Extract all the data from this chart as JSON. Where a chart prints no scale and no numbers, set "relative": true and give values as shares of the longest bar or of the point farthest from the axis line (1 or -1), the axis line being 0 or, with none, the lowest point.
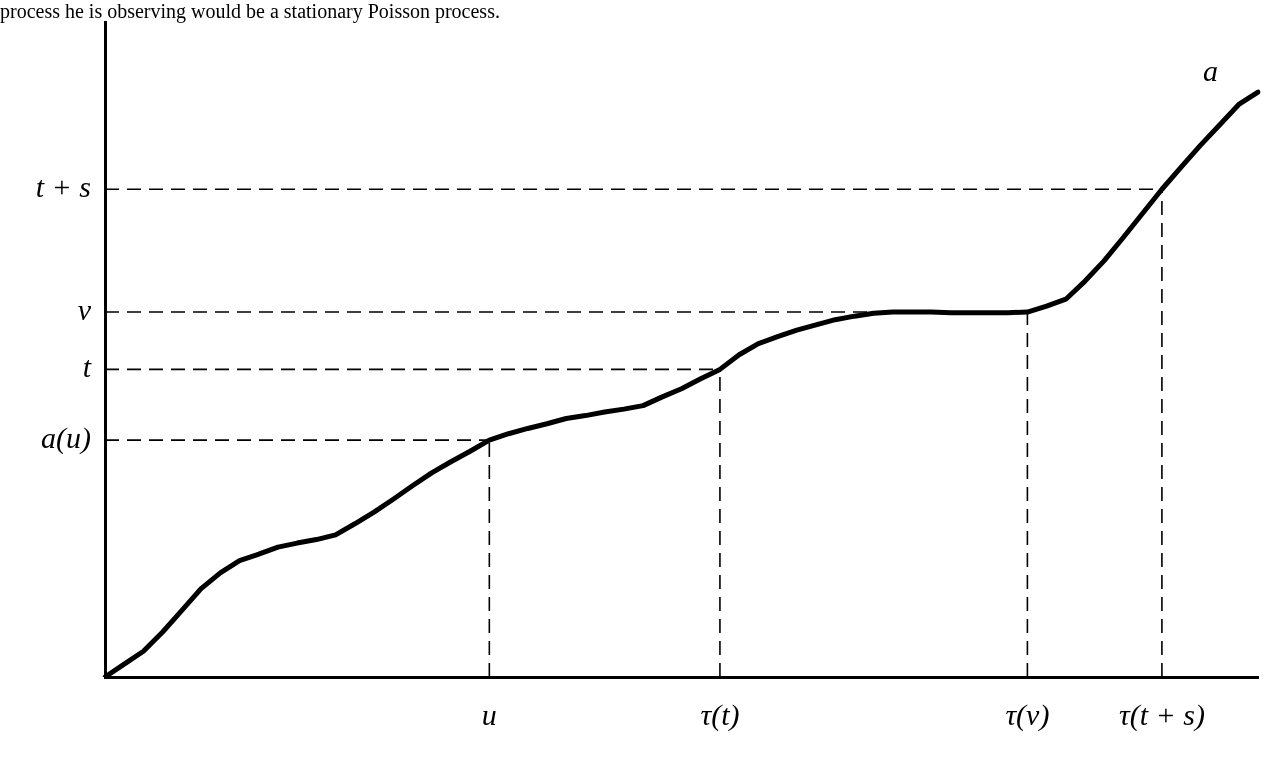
{
  "chart_data": {
    "type": "line",
    "relative": true,
    "grid": false,
    "legend": false,
    "marker": "none",
    "line_style": "solid",
    "categories": [
      null,
      null,
      null,
      null,
      null,
      null,
      null,
      null,
      null,
      null,
      null,
      null,
      null,
      null,
      null,
      null,
      null,
      null,
      null,
      null,
      "u",
      null,
      null,
      null,
      null,
      null,
      null,
      null,
      null,
      null,
      null,
      null,
      "τ(t)",
      null,
      null,
      null,
      null,
      null,
      null,
      null,
      null,
      null,
      null,
      null,
      null,
      null,
      null,
      null,
      "τ(v)",
      null,
      null,
      null,
      null,
      null,
      null,
      "τ(t + s)",
      null,
      null,
      null,
      null,
      null
    ],
    "series": [
      {
        "name": "a",
        "color": "#000000",
        "values": [
          0,
          0.022,
          0.044,
          0.077,
          0.114,
          0.151,
          0.178,
          0.199,
          0.21,
          0.222,
          0.229,
          0.235,
          0.243,
          0.262,
          0.282,
          0.304,
          0.327,
          0.349,
          0.368,
          0.386,
          0.405,
          0.416,
          0.425,
          0.433,
          0.442,
          0.447,
          0.453,
          0.458,
          0.464,
          0.479,
          0.493,
          0.51,
          0.526,
          0.551,
          0.57,
          0.582,
          0.593,
          0.602,
          0.611,
          0.617,
          0.622,
          0.624,
          0.624,
          0.624,
          0.623,
          0.623,
          0.623,
          0.623,
          0.624,
          0.634,
          0.646,
          0.677,
          0.712,
          0.752,
          0.793,
          0.834,
          0.872,
          0.909,
          0.944,
          0.979,
          1.0
        ]
      }
    ],
    "ref_lines": [
      {
        "axis": "y",
        "value": 0.834,
        "label": "t + s",
        "line_style": "dashed",
        "color": "#000000"
      },
      {
        "axis": "y",
        "value": 0.624,
        "label": "v",
        "line_style": "dashed",
        "color": "#000000"
      },
      {
        "axis": "y",
        "value": 0.526,
        "label": "t",
        "line_style": "dashed",
        "color": "#000000"
      },
      {
        "axis": "y",
        "value": 0.405,
        "label": "a(u)",
        "line_style": "dashed",
        "color": "#000000"
      },
      {
        "axis": "x",
        "value": "u",
        "line_style": "dashed",
        "color": "#000000"
      },
      {
        "axis": "x",
        "value": "τ(t)",
        "line_style": "dashed",
        "color": "#000000"
      },
      {
        "axis": "x",
        "value": "τ(v)",
        "line_style": "dashed",
        "color": "#000000"
      },
      {
        "axis": "x",
        "value": "τ(t + s)",
        "line_style": "dashed",
        "color": "#000000"
      }
    ],
    "annotations": [
      "process he is observing would be a stationary Poisson process."
    ]
  }
}
